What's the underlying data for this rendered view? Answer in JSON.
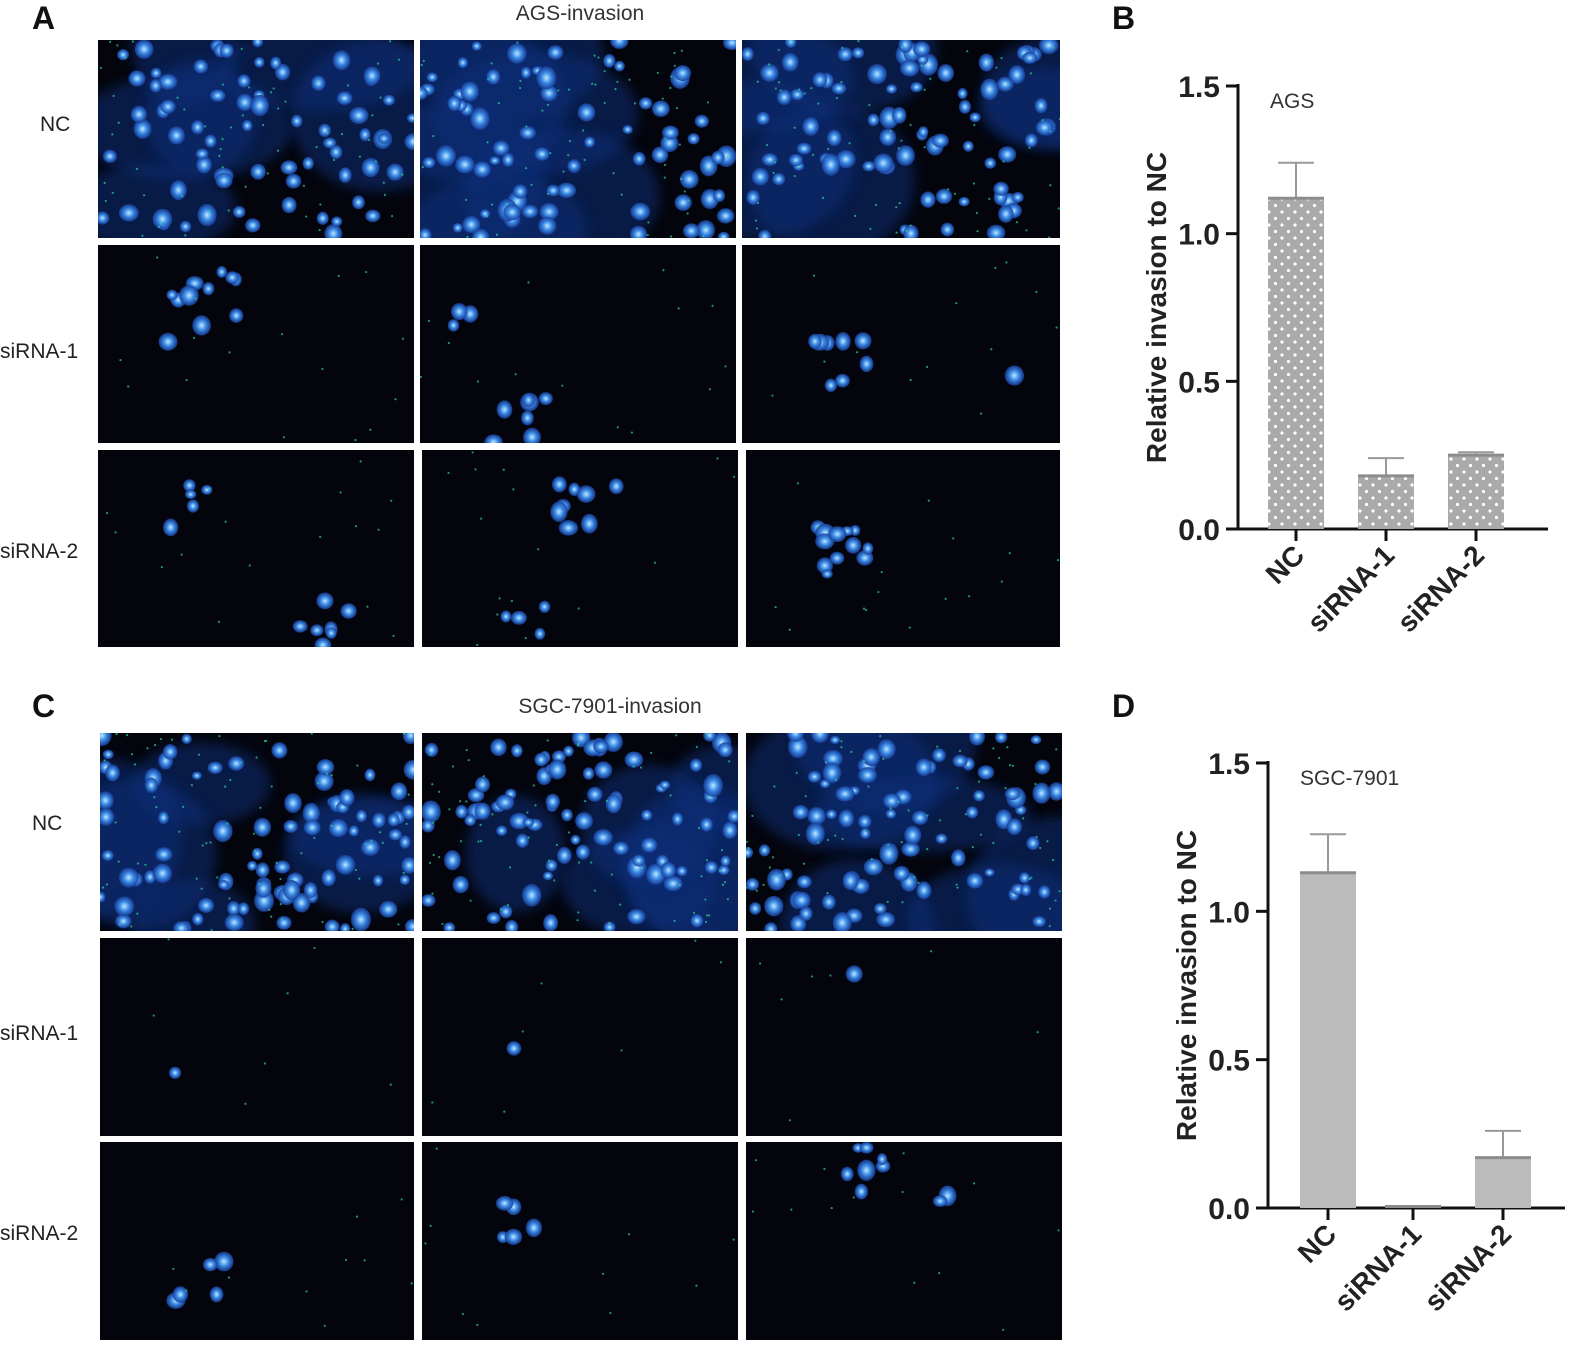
{
  "panels": {
    "A": {
      "letter": "A",
      "title": "AGS-invasion",
      "rows": [
        "NC",
        "siRNA-1",
        "siRNA-2"
      ]
    },
    "B": {
      "letter": "B"
    },
    "C": {
      "letter": "C",
      "title": "SGC-7901-invasion",
      "rows": [
        "NC",
        "siRNA-1",
        "siRNA-2"
      ]
    },
    "D": {
      "letter": "D"
    }
  },
  "chart_data": [
    {
      "panel": "B",
      "type": "bar",
      "annotation": "AGS",
      "categories": [
        "NC",
        "siRNA-1",
        "siRNA-2"
      ],
      "values": [
        1.12,
        0.18,
        0.25
      ],
      "error_upper": [
        1.24,
        0.24,
        0.26
      ],
      "ylabel": "Relative invasion to NC",
      "ylim": [
        0,
        1.5
      ],
      "yticks": [
        "0.0",
        "0.5",
        "1.0",
        "1.5"
      ],
      "bar_color": "#aaaaaa",
      "bar_pattern": "dotted"
    },
    {
      "panel": "D",
      "type": "bar",
      "annotation": "SGC-7901",
      "categories": [
        "NC",
        "siRNA-1",
        "siRNA-2"
      ],
      "values": [
        1.13,
        0.005,
        0.17
      ],
      "error_upper": [
        1.26,
        0.005,
        0.26
      ],
      "ylabel": "Relative invasion to NC",
      "ylim": [
        0,
        1.5
      ],
      "yticks": [
        "0.0",
        "0.5",
        "1.0",
        "1.5"
      ],
      "bar_color": "#bbbbbb",
      "bar_pattern": "solid"
    }
  ],
  "micrograph_density": {
    "A": [
      [
        70,
        75,
        80
      ],
      [
        12,
        10,
        9
      ],
      [
        12,
        12,
        12
      ]
    ],
    "C": [
      [
        85,
        85,
        85
      ],
      [
        1,
        1,
        1
      ],
      [
        5,
        5,
        9
      ]
    ]
  }
}
